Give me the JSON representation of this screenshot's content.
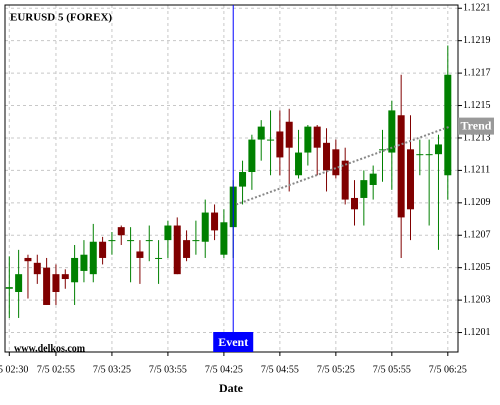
{
  "chart_data": {
    "type": "candlestick",
    "title": "EURUSD 5 (FOREX)",
    "watermark": "www.delkos.com",
    "x_label": "Date",
    "categories": [
      "7/5 02:30",
      null,
      null,
      null,
      null,
      "7/5 02:55",
      null,
      null,
      null,
      null,
      null,
      "7/5 03:25",
      null,
      null,
      null,
      null,
      null,
      "7/5 03:55",
      null,
      null,
      null,
      null,
      null,
      "7/5 04:25",
      null,
      null,
      null,
      null,
      null,
      "7/5 04:55",
      null,
      null,
      null,
      null,
      null,
      "7/5 05:25",
      null,
      null,
      null,
      null,
      null,
      "7/5 05:55",
      null,
      null,
      null,
      null,
      null,
      "7/5 06:25"
    ],
    "open": [
      1.12037,
      1.12035,
      1.12056,
      1.12053,
      1.1205,
      1.12046,
      1.12046,
      1.12041,
      1.12048,
      1.12046,
      1.12066,
      1.12067,
      1.12075,
      1.12067,
      1.1206,
      1.12067,
      1.12056,
      1.12067,
      1.12076,
      1.12067,
      1.12067,
      1.12066,
      1.12084,
      1.12058,
      1.12075,
      1.121,
      1.12109,
      1.12129,
      1.12129,
      1.12134,
      1.1214,
      1.12107,
      1.12121,
      1.12137,
      1.12127,
      1.12123,
      1.12116,
      1.12093,
      1.12093,
      1.12101,
      1.12123,
      1.12121,
      1.12144,
      1.12123,
      1.1212,
      1.1212,
      1.1212,
      1.12107
    ],
    "high": [
      1.12057,
      1.12061,
      1.12058,
      1.12058,
      1.12056,
      1.12052,
      1.12049,
      1.12064,
      1.12067,
      1.12077,
      1.12069,
      1.12072,
      1.12076,
      1.12075,
      1.12067,
      1.12076,
      1.12067,
      1.12079,
      1.12081,
      1.12073,
      1.12079,
      1.12092,
      1.12089,
      1.12086,
      1.12104,
      1.12116,
      1.12132,
      1.12141,
      1.12147,
      1.12147,
      1.12148,
      1.12135,
      1.12138,
      1.12138,
      1.12136,
      1.12129,
      1.12124,
      1.12104,
      1.1211,
      1.12113,
      1.12135,
      1.12153,
      1.12169,
      1.12144,
      1.12129,
      1.12129,
      1.12132,
      1.12187
    ],
    "low": [
      1.12019,
      1.12019,
      1.12031,
      1.1204,
      1.12027,
      1.12027,
      1.12037,
      1.12027,
      1.12041,
      1.12041,
      1.12052,
      1.12058,
      1.12064,
      1.12041,
      1.1204,
      1.12054,
      1.1204,
      1.12056,
      1.12046,
      1.12054,
      1.12058,
      1.12056,
      1.12067,
      1.12056,
      1.12056,
      1.12089,
      1.12098,
      1.12116,
      1.12107,
      1.12107,
      1.12097,
      1.12105,
      1.12113,
      1.12107,
      1.12097,
      1.12105,
      1.12089,
      1.12076,
      1.12076,
      1.12092,
      1.12103,
      1.12098,
      1.12056,
      1.12067,
      1.12107,
      1.12076,
      1.12061,
      1.12092
    ],
    "close": [
      1.12038,
      1.12046,
      1.12054,
      1.12046,
      1.12027,
      1.12035,
      1.12043,
      1.12056,
      1.12058,
      1.12066,
      1.12056,
      1.12067,
      1.1207,
      1.12067,
      1.12056,
      1.12067,
      1.12056,
      1.12076,
      1.12046,
      1.12056,
      1.12067,
      1.12084,
      1.12073,
      1.12078,
      1.121,
      1.12109,
      1.12129,
      1.12137,
      1.12129,
      1.12118,
      1.12124,
      1.12121,
      1.12137,
      1.12124,
      1.1211,
      1.12107,
      1.12092,
      1.12086,
      1.12104,
      1.12108,
      1.12123,
      1.12147,
      1.12081,
      1.12086,
      1.1212,
      1.1212,
      1.12126,
      1.12169
    ],
    "up_color": "#008000",
    "down_color": "#800000",
    "ylim": [
      1.11998,
      1.12212
    ],
    "yticks": [
      1.1201,
      1.1203,
      1.1205,
      1.1207,
      1.1209,
      1.1211,
      1.1213,
      1.1215,
      1.1217,
      1.1219,
      1.1221
    ],
    "grid": true,
    "event": {
      "label": "Event",
      "color": "#0000ff"
    },
    "trend": {
      "label": "Trend",
      "values": [
        1.12089,
        1.12137
      ],
      "color": "#888888"
    }
  }
}
